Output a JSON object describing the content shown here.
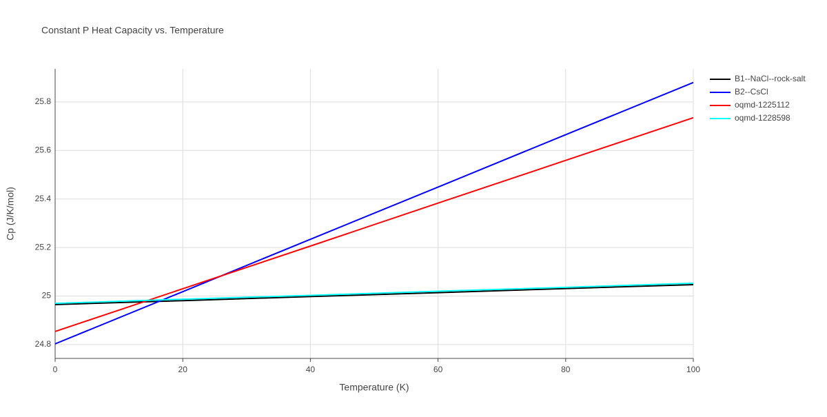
{
  "chart_data": {
    "type": "line",
    "title": "Constant P Heat Capacity vs. Temperature",
    "x_label": "Temperature (K)",
    "y_label": "Cp (J/K/mol)",
    "x": [
      0,
      20,
      40,
      60,
      80,
      100
    ],
    "series": [
      {
        "name": "B1--NaCl--rock-salt",
        "color": "#000000",
        "values": [
          24.965,
          24.981,
          24.998,
          25.014,
          25.031,
          25.047
        ]
      },
      {
        "name": "B2--CsCl",
        "color": "#0000ff",
        "values": [
          24.803,
          25.018,
          25.234,
          25.449,
          25.665,
          25.88
        ]
      },
      {
        "name": "oqmd-1225112",
        "color": "#ff0000",
        "values": [
          24.854,
          25.03,
          25.206,
          25.383,
          25.559,
          25.735
        ]
      },
      {
        "name": "oqmd-1228598",
        "color": "#00ffff",
        "values": [
          24.97,
          24.987,
          25.003,
          25.02,
          25.036,
          25.053
        ]
      }
    ],
    "xlim": [
      0,
      100
    ],
    "xticks": [
      0,
      20,
      40,
      60,
      80,
      100
    ],
    "ylim": [
      24.743,
      25.936
    ],
    "yticks": [
      24.8,
      25,
      25.2,
      25.4,
      25.6,
      25.8
    ],
    "grid": true,
    "legend": "top-right"
  }
}
